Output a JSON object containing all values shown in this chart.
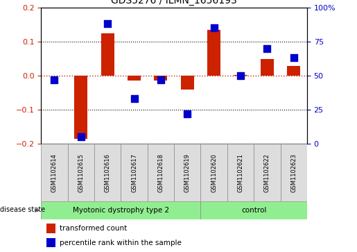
{
  "title": "GDS5276 / ILMN_1656193",
  "samples": [
    "GSM1102614",
    "GSM1102615",
    "GSM1102616",
    "GSM1102617",
    "GSM1102618",
    "GSM1102619",
    "GSM1102620",
    "GSM1102621",
    "GSM1102622",
    "GSM1102623"
  ],
  "red_values": [
    0.0,
    -0.185,
    0.125,
    -0.015,
    -0.015,
    -0.04,
    0.135,
    0.002,
    0.048,
    0.028
  ],
  "blue_percentile": [
    47,
    5,
    88,
    33,
    47,
    22,
    85,
    50,
    70,
    63
  ],
  "disease_groups": [
    {
      "label": "Myotonic dystrophy type 2",
      "start": 0,
      "end": 6,
      "color": "#90EE90"
    },
    {
      "label": "control",
      "start": 6,
      "end": 10,
      "color": "#90EE90"
    }
  ],
  "ylim_left": [
    -0.2,
    0.2
  ],
  "ylim_right": [
    0,
    100
  ],
  "yticks_left": [
    -0.2,
    -0.1,
    0.0,
    0.1,
    0.2
  ],
  "yticks_right": [
    0,
    25,
    50,
    75,
    100
  ],
  "ytick_labels_right": [
    "0",
    "25",
    "50",
    "75",
    "100%"
  ],
  "red_color": "#CC2200",
  "blue_color": "#0000CC",
  "bar_width": 0.5,
  "dot_size": 45,
  "legend_labels": [
    "transformed count",
    "percentile rank within the sample"
  ],
  "disease_label": "disease state",
  "grid_color": "#000000",
  "zero_line_color": "#CC2200",
  "sample_box_color": "#DDDDDD",
  "sample_box_edge": "#888888"
}
